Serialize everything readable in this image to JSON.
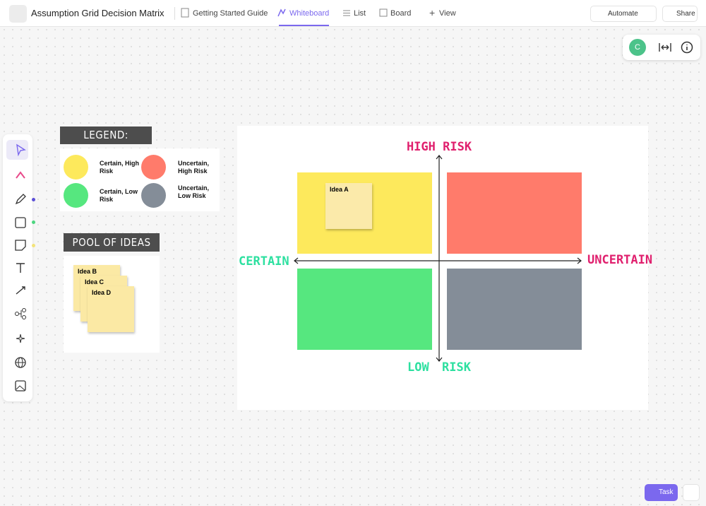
{
  "header": {
    "title": "Assumption Grid Decision Matrix",
    "tabs": [
      "Getting Started Guide",
      "Whiteboard",
      "List",
      "Board",
      "View"
    ],
    "actions": [
      "Automate",
      "Share"
    ]
  },
  "avatar": "C",
  "legend": {
    "title": "LEGEND:",
    "items": [
      "Certain, High Risk",
      "Uncertain, High Risk",
      "Certain, Low Risk",
      "Uncertain, Low Risk"
    ]
  },
  "pool": {
    "title": "POOL OF IDEAS",
    "ideas": [
      "Idea B",
      "Idea C",
      "Idea D"
    ]
  },
  "matrix": {
    "top": "HIGH RISK",
    "bottom": "LOW RISK",
    "left": "CERTAIN",
    "right": "UNCERTAIN",
    "notes": [
      "Idea A"
    ]
  },
  "task_button": "Task"
}
